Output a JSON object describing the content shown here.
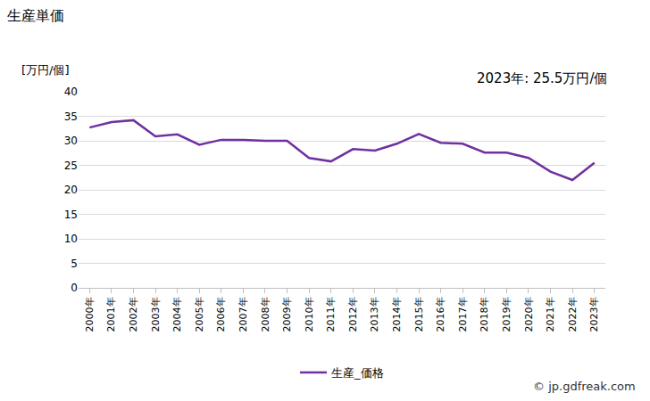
{
  "chart_data": {
    "type": "line",
    "title": "生産単価",
    "y_label": "[万円/個]",
    "annotations": [
      "2023年: 25.5万円/個"
    ],
    "source": "© jp.gdfreak.com",
    "categories": [
      "2000年",
      "2001年",
      "2002年",
      "2003年",
      "2004年",
      "2005年",
      "2006年",
      "2007年",
      "2008年",
      "2009年",
      "2010年",
      "2011年",
      "2012年",
      "2013年",
      "2014年",
      "2015年",
      "2016年",
      "2017年",
      "2018年",
      "2019年",
      "2020年",
      "2021年",
      "2022年",
      "2023年"
    ],
    "series": [
      {
        "name": "生産_価格",
        "color": "#7030a0",
        "values": [
          32.7,
          33.8,
          34.2,
          30.9,
          31.3,
          29.2,
          30.2,
          30.2,
          30.0,
          30.0,
          26.5,
          25.8,
          28.3,
          28.0,
          29.4,
          31.4,
          29.6,
          29.4,
          27.6,
          27.6,
          26.5,
          23.7,
          22.0,
          25.5
        ]
      }
    ],
    "ylim": [
      0,
      40
    ],
    "yticks": [
      0,
      5,
      10,
      15,
      20,
      25,
      30,
      35,
      40
    ],
    "grid": true,
    "legend": "bottom"
  }
}
